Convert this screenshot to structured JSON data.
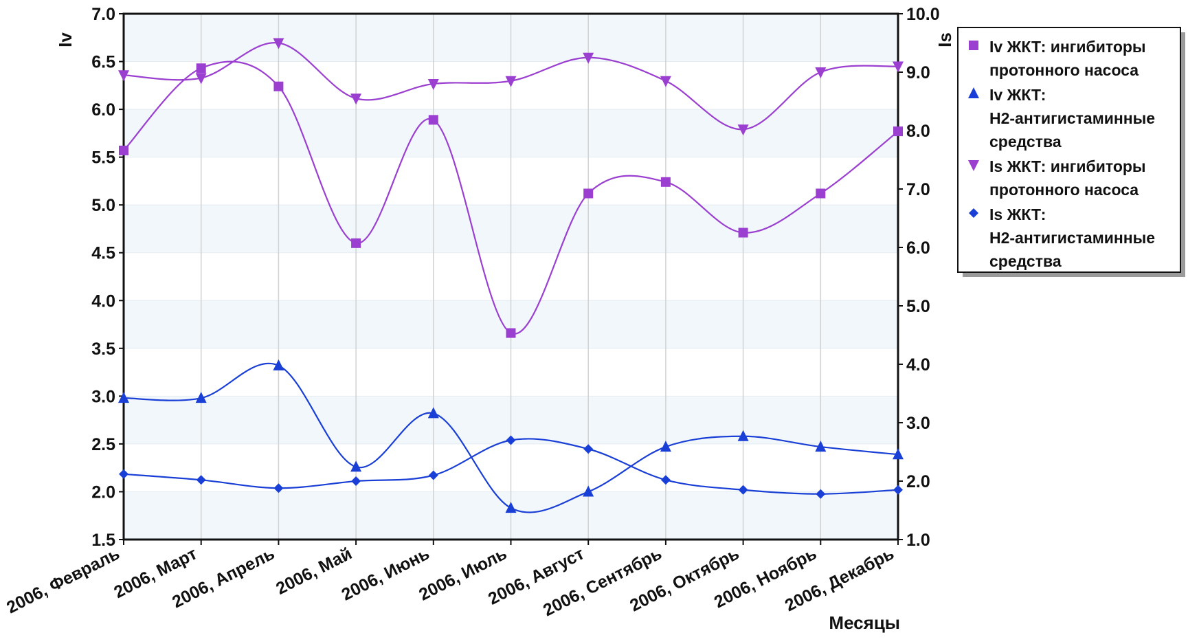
{
  "chart_data": {
    "type": "line",
    "xlabel": "Месяцы",
    "ylabel_left": "Iv",
    "ylabel_right": "Is",
    "categories": [
      "2006, Февраль",
      "2006, Март",
      "2006, Апрель",
      "2006, Май",
      "2006, Июнь",
      "2006, Июль",
      "2006, Август",
      "2006, Сентябрь",
      "2006, Октябрь",
      "2006, Ноябрь",
      "2006, Декабрь"
    ],
    "ylim_left": [
      1.5,
      7.0
    ],
    "ylim_right": [
      1.0,
      10.0
    ],
    "yticks_left": [
      "1.5",
      "2.0",
      "2.5",
      "3.0",
      "3.5",
      "4.0",
      "4.5",
      "5.0",
      "5.5",
      "6.0",
      "6.5",
      "7.0"
    ],
    "yticks_right": [
      "1.0",
      "2.0",
      "3.0",
      "4.0",
      "5.0",
      "6.0",
      "7.0",
      "8.0",
      "9.0",
      "10.0"
    ],
    "grid": "alternating horizontal bands",
    "legend_position": "right",
    "series": [
      {
        "name": "Iv ЖКТ: ингибиторы протонного насоса",
        "legend_lines": [
          "Iv ЖКТ: ингибиторы",
          "протонного насоса"
        ],
        "axis": "left",
        "marker": "square",
        "color": "#9a3fd0",
        "values": [
          5.57,
          6.43,
          6.24,
          4.6,
          5.89,
          3.66,
          5.12,
          5.24,
          4.71,
          5.12,
          5.77
        ]
      },
      {
        "name": "Iv ЖКТ: H2-антигистаминные средства",
        "legend_lines": [
          "Iv ЖКТ:",
          "H2-антигистаминные",
          "средства"
        ],
        "axis": "left",
        "marker": "triangle-up",
        "color": "#1a3fd6",
        "values": [
          2.98,
          2.98,
          3.32,
          2.26,
          2.82,
          1.83,
          2.0,
          2.47,
          2.58,
          2.47,
          2.39
        ]
      },
      {
        "name": "Is ЖКТ: ингибиторы протонного насоса",
        "legend_lines": [
          "Is ЖКТ: ингибиторы",
          "протонного насоса"
        ],
        "axis": "right",
        "marker": "triangle-down",
        "color": "#9a3fd0",
        "values": [
          8.95,
          8.9,
          9.5,
          8.55,
          8.8,
          8.85,
          9.25,
          8.85,
          8.02,
          9.0,
          9.1
        ]
      },
      {
        "name": "Is ЖКТ: H2-антигистаминные средства",
        "legend_lines": [
          "Is ЖКТ:",
          "H2-антигистаминные",
          "средства"
        ],
        "axis": "right",
        "marker": "diamond",
        "color": "#1a3fd6",
        "values": [
          2.12,
          2.02,
          1.88,
          2.0,
          2.1,
          2.7,
          2.55,
          2.02,
          1.85,
          1.78,
          1.85
        ]
      }
    ]
  }
}
